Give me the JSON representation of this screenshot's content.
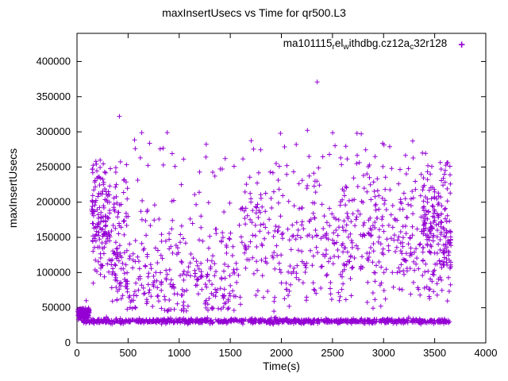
{
  "title": "maxInsertUsecs vs Time for qr500.L3",
  "legend": {
    "label_raw": "ma101115_rel_withdbg.cz12a_c32r128",
    "segments": [
      {
        "text": "ma101115",
        "sub": false
      },
      {
        "text": "r",
        "sub": true
      },
      {
        "text": "el",
        "sub": false
      },
      {
        "text": "w",
        "sub": true
      },
      {
        "text": "ithdbg.cz12a",
        "sub": false
      },
      {
        "text": "c",
        "sub": true
      },
      {
        "text": "32r128",
        "sub": false
      }
    ],
    "marker_glyph": "+"
  },
  "chart_data": {
    "type": "scatter",
    "title": "maxInsertUsecs vs Time for qr500.L3",
    "xlabel": "Time(s)",
    "ylabel": "maxInsertUsecs",
    "xlim": [
      0,
      4000
    ],
    "ylim": [
      0,
      440000
    ],
    "xticks": [
      0,
      500,
      1000,
      1500,
      2000,
      2500,
      3000,
      3500,
      4000
    ],
    "yticks": [
      0,
      50000,
      100000,
      150000,
      200000,
      250000,
      300000,
      350000,
      400000
    ],
    "grid": false,
    "marker": "plus",
    "marker_color": "#9400D3",
    "axis_color": "#000000",
    "legend_position": "top-center-inside",
    "series_name": "ma101115_rel_withdbg.cz12a_c32r128",
    "seed": 42,
    "outliers": [
      [
        415,
        322000
      ],
      [
        2350,
        371000
      ],
      [
        2255,
        302000
      ],
      [
        2740,
        298000
      ],
      [
        3285,
        287000
      ],
      [
        2145,
        282000
      ],
      [
        3060,
        279000
      ],
      [
        620,
        263000
      ],
      [
        1450,
        262000
      ],
      [
        185,
        258000
      ],
      [
        3620,
        256000
      ],
      [
        1980,
        251000
      ],
      [
        2470,
        268000
      ],
      [
        3380,
        270000
      ],
      [
        760,
        196000
      ],
      [
        90,
        60000
      ]
    ],
    "clusters": [
      {
        "name": "baseline-band",
        "count": 850,
        "x": [
          60,
          3650
        ],
        "y": {
          "dist": "normal",
          "mean": 31000,
          "sd": 1800,
          "clip": [
            26500,
            38000
          ]
        }
      },
      {
        "name": "startup-blob",
        "count": 130,
        "x": [
          5,
          120
        ],
        "y": {
          "dist": "normal",
          "mean": 41000,
          "sd": 4500,
          "clip": [
            30000,
            50000
          ]
        }
      },
      {
        "name": "early-spike-a",
        "count": 140,
        "x": [
          140,
          330
        ],
        "y": {
          "dist": "normal",
          "mean": 175000,
          "sd": 40000,
          "clip": [
            60000,
            255000
          ]
        }
      },
      {
        "name": "early-spike-b",
        "count": 90,
        "x": [
          330,
          500
        ],
        "y": {
          "dist": "normal",
          "mean": 130000,
          "sd": 60000,
          "clip": [
            40000,
            260000
          ]
        }
      },
      {
        "name": "mid-region",
        "count": 280,
        "x": [
          480,
          1600
        ],
        "y": {
          "dist": "halfnormal",
          "base": 45000,
          "sd": 70000,
          "clip": [
            45000,
            262000
          ]
        }
      },
      {
        "name": "right-region",
        "count": 560,
        "x": [
          1600,
          3660
        ],
        "y": {
          "dist": "normal",
          "mean": 145000,
          "sd": 55000,
          "clip": [
            45000,
            285000
          ]
        }
      },
      {
        "name": "right-edge-dense",
        "count": 130,
        "x": [
          3380,
          3660
        ],
        "y": {
          "dist": "normal",
          "mean": 165000,
          "sd": 45000,
          "clip": [
            60000,
            260000
          ]
        }
      },
      {
        "name": "high-sprinkle",
        "count": 50,
        "x": [
          150,
          3660
        ],
        "y": {
          "dist": "uniform",
          "range": [
            228000,
            300000
          ]
        }
      }
    ]
  }
}
